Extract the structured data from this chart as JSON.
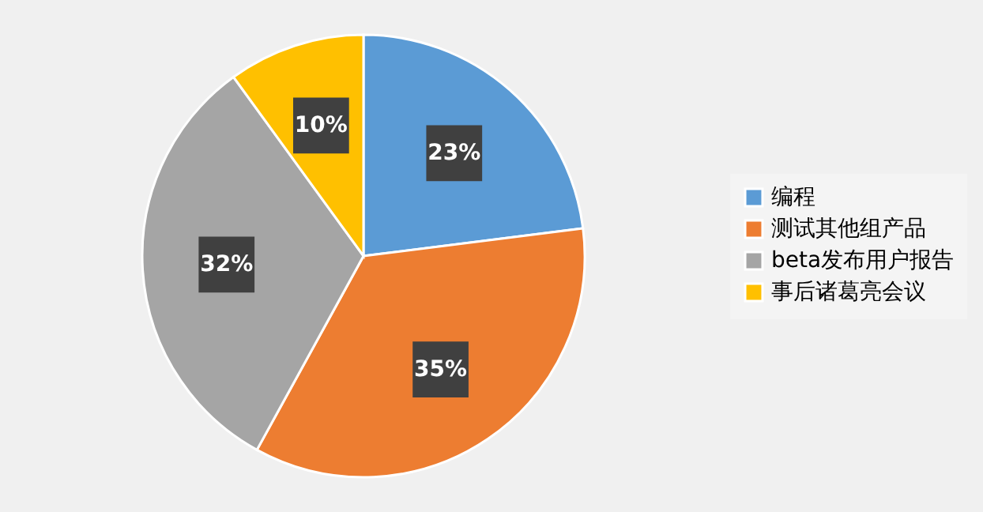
{
  "chart_data": {
    "type": "pie",
    "categories": [
      "编程",
      "测试其他组产品",
      "beta发布用户报告",
      "事后诸葛亮会议"
    ],
    "values": [
      23,
      35,
      32,
      10
    ],
    "colors": [
      "#5b9bd5",
      "#ed7d31",
      "#a5a5a5",
      "#ffc000"
    ],
    "value_labels": [
      "23%",
      "35%",
      "32%",
      "10%"
    ],
    "legend": "right"
  }
}
